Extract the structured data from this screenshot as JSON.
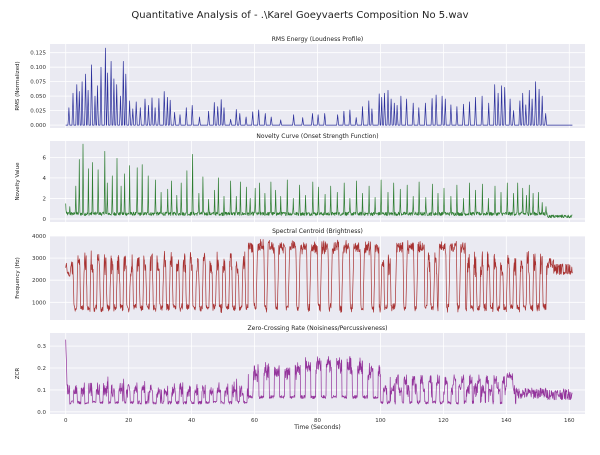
{
  "figure": {
    "suptitle": "Quantitative Analysis of - .\\Karel Goeyvaerts Composition No 5.wav",
    "xlabel": "Time (Seconds)",
    "x_ticks": [
      0,
      20,
      40,
      60,
      80,
      100,
      120,
      140,
      160
    ],
    "xlim": [
      -5,
      165
    ]
  },
  "chart_data": [
    {
      "type": "line",
      "title": "RMS Energy (Loudness Profile)",
      "ylabel": "RMS (Normalized)",
      "ylim": [
        -0.005,
        0.14
      ],
      "y_ticks": [
        0.0,
        0.025,
        0.05,
        0.075,
        0.1,
        0.125
      ],
      "tick_decimals": 3,
      "color": "#2b2f9b",
      "baseline": 0.0,
      "noise": 0.0,
      "gaps": [
        [
          153,
          161
        ]
      ],
      "x_end": 161,
      "spikes": [
        [
          1,
          0.03
        ],
        [
          2.3,
          0.055
        ],
        [
          3.5,
          0.07
        ],
        [
          4.3,
          0.058
        ],
        [
          5.2,
          0.075
        ],
        [
          6.3,
          0.088
        ],
        [
          7.1,
          0.06
        ],
        [
          8.2,
          0.104
        ],
        [
          9.3,
          0.05
        ],
        [
          10.1,
          0.068
        ],
        [
          11.2,
          0.1
        ],
        [
          12.6,
          0.133
        ],
        [
          13.3,
          0.09
        ],
        [
          14.4,
          0.11
        ],
        [
          15.3,
          0.08
        ],
        [
          16.2,
          0.07
        ],
        [
          17.4,
          0.05
        ],
        [
          18.3,
          0.11
        ],
        [
          19.1,
          0.088
        ],
        [
          20.3,
          0.042
        ],
        [
          21.3,
          0.028
        ],
        [
          22.4,
          0.04
        ],
        [
          23.7,
          0.03
        ],
        [
          25.2,
          0.045
        ],
        [
          26.3,
          0.034
        ],
        [
          27.4,
          0.047
        ],
        [
          28.4,
          0.03
        ],
        [
          29.6,
          0.046
        ],
        [
          31.3,
          0.058
        ],
        [
          32.3,
          0.048
        ],
        [
          33.2,
          0.043
        ],
        [
          34.6,
          0.022
        ],
        [
          36.3,
          0.018
        ],
        [
          38.3,
          0.03
        ],
        [
          40.2,
          0.034
        ],
        [
          42.5,
          0.014
        ],
        [
          45.4,
          0.024
        ],
        [
          47.2,
          0.039
        ],
        [
          48.3,
          0.032
        ],
        [
          49.4,
          0.044
        ],
        [
          50.3,
          0.03
        ],
        [
          52.4,
          0.01
        ],
        [
          54.2,
          0.027
        ],
        [
          55.3,
          0.02
        ],
        [
          57.3,
          0.014
        ],
        [
          59.4,
          0.023
        ],
        [
          61.3,
          0.026
        ],
        [
          63.4,
          0.02
        ],
        [
          65.3,
          0.014
        ],
        [
          68.3,
          0.009
        ],
        [
          72.4,
          0.018
        ],
        [
          75.3,
          0.013
        ],
        [
          78.4,
          0.02
        ],
        [
          80.2,
          0.018
        ],
        [
          82.3,
          0.02
        ],
        [
          86.4,
          0.018
        ],
        [
          88.4,
          0.024
        ],
        [
          90.3,
          0.026
        ],
        [
          92.3,
          0.013
        ],
        [
          94.3,
          0.032
        ],
        [
          96.3,
          0.042
        ],
        [
          97.3,
          0.028
        ],
        [
          99.6,
          0.054
        ],
        [
          100.4,
          0.048
        ],
        [
          101.3,
          0.055
        ],
        [
          102.4,
          0.06
        ],
        [
          103.4,
          0.045
        ],
        [
          104.4,
          0.038
        ],
        [
          105.3,
          0.034
        ],
        [
          106.5,
          0.05
        ],
        [
          108.3,
          0.045
        ],
        [
          110.4,
          0.038
        ],
        [
          112.2,
          0.03
        ],
        [
          114.3,
          0.038
        ],
        [
          116.4,
          0.046
        ],
        [
          117.7,
          0.052
        ],
        [
          119.6,
          0.05
        ],
        [
          120.6,
          0.045
        ],
        [
          122.4,
          0.035
        ],
        [
          124.3,
          0.032
        ],
        [
          126.4,
          0.036
        ],
        [
          128.3,
          0.04
        ],
        [
          130.2,
          0.048
        ],
        [
          132.3,
          0.05
        ],
        [
          134.4,
          0.038
        ],
        [
          136.3,
          0.07
        ],
        [
          137.4,
          0.055
        ],
        [
          138.5,
          0.068
        ],
        [
          139.5,
          0.065
        ],
        [
          141.2,
          0.045
        ],
        [
          142.3,
          0.025
        ],
        [
          144.3,
          0.042
        ],
        [
          145.2,
          0.055
        ],
        [
          146.2,
          0.035
        ],
        [
          147.3,
          0.06
        ],
        [
          148.2,
          0.045
        ],
        [
          149.3,
          0.075
        ],
        [
          150.4,
          0.062
        ],
        [
          151.4,
          0.05
        ],
        [
          152.5,
          0.02
        ]
      ]
    },
    {
      "type": "line",
      "title": "Novelty Curve (Onset Strength Function)",
      "ylabel": "Novelty Value",
      "ylim": [
        -0.3,
        7.6
      ],
      "y_ticks": [
        0,
        2,
        4,
        6
      ],
      "tick_decimals": 0,
      "color": "#2e7d32",
      "baseline": 0.5,
      "noise": 0.35,
      "gaps": [],
      "x_end": 161,
      "spikes": [
        [
          0,
          1.5
        ],
        [
          1.3,
          1.2
        ],
        [
          3.2,
          3.2
        ],
        [
          4.3,
          5.8
        ],
        [
          5.5,
          7.3
        ],
        [
          7.2,
          4.9
        ],
        [
          8.5,
          5.5
        ],
        [
          10.3,
          4.8
        ],
        [
          12.4,
          6.6
        ],
        [
          13.2,
          3.5
        ],
        [
          14.8,
          4.2
        ],
        [
          16.3,
          5.9
        ],
        [
          17.6,
          3.2
        ],
        [
          18.7,
          4.4
        ],
        [
          20.3,
          5.2
        ],
        [
          22.7,
          5.0
        ],
        [
          24.3,
          5.3
        ],
        [
          26.2,
          4.2
        ],
        [
          28.5,
          3.8
        ],
        [
          30.3,
          2.6
        ],
        [
          32.4,
          2.9
        ],
        [
          33.6,
          3.7
        ],
        [
          35.3,
          2.3
        ],
        [
          36.7,
          3.5
        ],
        [
          38.5,
          4.7
        ],
        [
          40.3,
          6.3
        ],
        [
          42.3,
          2.5
        ],
        [
          43.6,
          4.1
        ],
        [
          45.4,
          1.9
        ],
        [
          47.3,
          2.8
        ],
        [
          48.5,
          4.0
        ],
        [
          50.3,
          2.2
        ],
        [
          52.4,
          3.7
        ],
        [
          54.2,
          2.2
        ],
        [
          55.5,
          3.6
        ],
        [
          57.4,
          3.1
        ],
        [
          58.6,
          2.0
        ],
        [
          60.2,
          3.0
        ],
        [
          61.6,
          3.5
        ],
        [
          63.3,
          2.5
        ],
        [
          65.2,
          3.6
        ],
        [
          66.7,
          2.8
        ],
        [
          68.3,
          2.2
        ],
        [
          70.4,
          3.8
        ],
        [
          72.3,
          2.0
        ],
        [
          74.3,
          3.3
        ],
        [
          76.2,
          2.3
        ],
        [
          78.5,
          3.6
        ],
        [
          80.3,
          3.1
        ],
        [
          82.4,
          2.4
        ],
        [
          84.2,
          3.2
        ],
        [
          86.3,
          2.6
        ],
        [
          88.5,
          3.5
        ],
        [
          90.3,
          2.0
        ],
        [
          92.4,
          3.7
        ],
        [
          94.3,
          2.5
        ],
        [
          96.4,
          3.2
        ],
        [
          98.3,
          2.1
        ],
        [
          100.2,
          3.8
        ],
        [
          102.4,
          2.6
        ],
        [
          104.2,
          3.5
        ],
        [
          106.3,
          2.9
        ],
        [
          108.5,
          3.3
        ],
        [
          110.4,
          2.2
        ],
        [
          112.3,
          3.6
        ],
        [
          114.4,
          2.1
        ],
        [
          116.5,
          3.4
        ],
        [
          118.3,
          2.5
        ],
        [
          120.2,
          3.0
        ],
        [
          122.4,
          2.2
        ],
        [
          124.3,
          3.3
        ],
        [
          126.4,
          2.0
        ],
        [
          128.3,
          3.5
        ],
        [
          130.2,
          2.8
        ],
        [
          132.4,
          3.4
        ],
        [
          134.3,
          2.0
        ],
        [
          136.4,
          3.2
        ],
        [
          138.3,
          2.6
        ],
        [
          140.3,
          3.5
        ],
        [
          142.3,
          2.5
        ],
        [
          143.6,
          3.5
        ],
        [
          145.2,
          3.0
        ],
        [
          146.4,
          2.3
        ],
        [
          147.3,
          3.3
        ],
        [
          148.5,
          2.5
        ],
        [
          150.2,
          2.6
        ],
        [
          151.4,
          1.6
        ],
        [
          152.6,
          1.2
        ]
      ],
      "tail": {
        "from": 153,
        "value": 0.25
      }
    },
    {
      "type": "line",
      "title": "Spectral Centroid (Brightness)",
      "ylabel": "Frequency (Hz)",
      "ylim": [
        200,
        4000
      ],
      "y_ticks": [
        1000,
        2000,
        3000,
        4000
      ],
      "tick_decimals": 0,
      "color": "#a83232",
      "kind": "centroid",
      "x_end": 161
    },
    {
      "type": "line",
      "title": "Zero-Crossing Rate (Noisiness/Percussiveness)",
      "ylabel": "ZCR",
      "ylim": [
        -0.01,
        0.36
      ],
      "y_ticks": [
        0.0,
        0.1,
        0.2,
        0.3
      ],
      "tick_decimals": 1,
      "color": "#93339b",
      "kind": "zcr",
      "x_end": 161
    }
  ]
}
